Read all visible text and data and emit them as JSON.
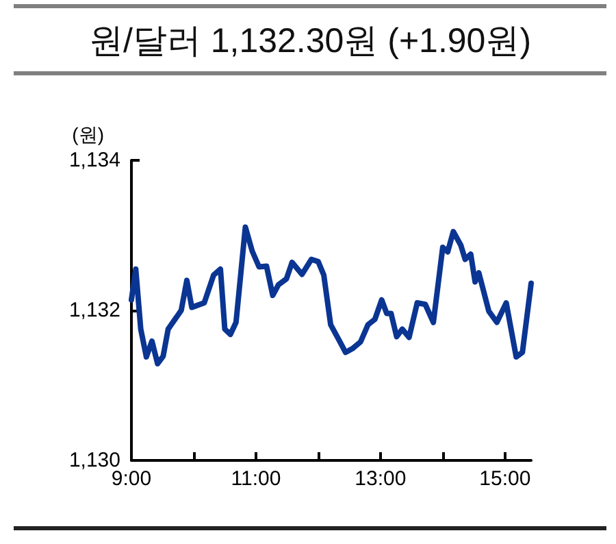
{
  "chart_data": {
    "type": "line",
    "title": "원/달러 1,132.30원 (+1.90원)",
    "ylabel": "(원)",
    "x": [
      9.0,
      9.07,
      9.15,
      9.24,
      9.33,
      9.42,
      9.51,
      9.59,
      9.8,
      9.89,
      9.97,
      10.17,
      10.32,
      10.43,
      10.5,
      10.59,
      10.68,
      10.83,
      10.94,
      11.05,
      11.17,
      11.27,
      11.36,
      11.49,
      11.58,
      11.74,
      11.89,
      12.0,
      12.09,
      12.2,
      12.33,
      12.44,
      12.55,
      12.68,
      12.8,
      12.91,
      13.02,
      13.1,
      13.17,
      13.26,
      13.35,
      13.46,
      13.59,
      13.72,
      13.85,
      14.0,
      14.08,
      14.17,
      14.29,
      14.36,
      14.45,
      14.52,
      14.58,
      14.74,
      14.87,
      15.02,
      15.18,
      15.28,
      15.42
    ],
    "series": [
      {
        "color": "#0b3592",
        "values": [
          1132.14,
          1132.55,
          1131.75,
          1131.38,
          1131.59,
          1131.29,
          1131.39,
          1131.75,
          1132.0,
          1132.4,
          1132.04,
          1132.1,
          1132.47,
          1132.55,
          1131.75,
          1131.68,
          1131.84,
          1133.11,
          1132.79,
          1132.58,
          1132.59,
          1132.2,
          1132.34,
          1132.42,
          1132.64,
          1132.48,
          1132.68,
          1132.65,
          1132.47,
          1131.81,
          1131.61,
          1131.44,
          1131.49,
          1131.58,
          1131.81,
          1131.88,
          1132.14,
          1131.96,
          1131.96,
          1131.65,
          1131.75,
          1131.64,
          1132.1,
          1132.08,
          1131.84,
          1132.84,
          1132.78,
          1133.05,
          1132.87,
          1132.68,
          1132.75,
          1132.38,
          1132.5,
          1131.99,
          1131.84,
          1132.1,
          1131.38,
          1131.44,
          1132.36
        ]
      }
    ],
    "xlim": [
      9,
      15.42
    ],
    "xticks": [
      {
        "value": 9,
        "label": "9:00"
      },
      {
        "value": 10,
        "label": null
      },
      {
        "value": 11,
        "label": "11:00"
      },
      {
        "value": 12,
        "label": null
      },
      {
        "value": 13,
        "label": "13:00"
      },
      {
        "value": 14,
        "label": null
      },
      {
        "value": 15,
        "label": "15:00"
      }
    ],
    "ylim": [
      1130,
      1134
    ],
    "yticks": [
      {
        "value": 1130,
        "label": "1,130"
      },
      {
        "value": 1132,
        "label": "1,132"
      },
      {
        "value": 1134,
        "label": "1,134"
      }
    ],
    "grid": false,
    "marker": "none",
    "line_style": "solid"
  }
}
